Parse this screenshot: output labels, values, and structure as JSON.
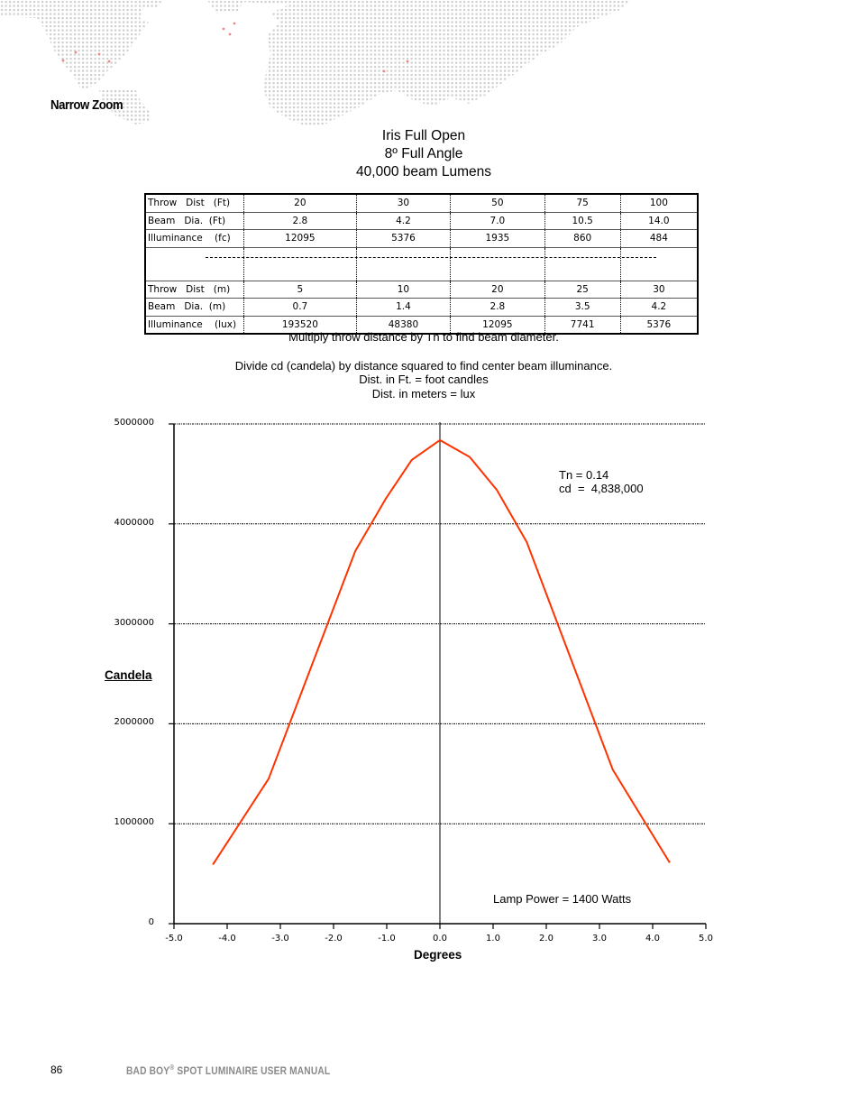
{
  "header": {
    "section_title": "Narrow Zoom"
  },
  "chart_heading": {
    "line1": "Iris Full Open",
    "line2": "8º Full Angle",
    "line3": "40,000 beam Lumens"
  },
  "photometric_table": {
    "imperial": [
      {
        "label": "Throw   Dist   (Ft)",
        "values": [
          "20",
          "30",
          "50",
          "75",
          "100"
        ]
      },
      {
        "label": "Beam   Dia.  (Ft)",
        "values": [
          "2.8",
          "4.2",
          "7.0",
          "10.5",
          "14.0"
        ]
      },
      {
        "label": "Illuminance    (fc)",
        "values": [
          "12095",
          "5376",
          "1935",
          "860",
          "484"
        ]
      }
    ],
    "metric": [
      {
        "label": "Throw   Dist   (m)",
        "values": [
          "5",
          "10",
          "20",
          "25",
          "30"
        ]
      },
      {
        "label": "Beam   Dia.  (m)",
        "values": [
          "0.7",
          "1.4",
          "2.8",
          "3.5",
          "4.2"
        ]
      },
      {
        "label": "Illuminance    (lux)",
        "values": [
          "193520",
          "48380",
          "12095",
          "7741",
          "5376"
        ]
      }
    ]
  },
  "notes": {
    "line1": "Multiply throw distance by Tn to find beam diameter.",
    "line2": "Divide cd (candela) by distance squared to find center beam illuminance.",
    "line3": "Dist. in Ft. = foot candles",
    "line4": "Dist. in meters = lux"
  },
  "chart_data": {
    "type": "line",
    "title": "",
    "xlabel": "Degrees",
    "ylabel": "Candela",
    "xlim": [
      -5.0,
      5.0
    ],
    "ylim": [
      0,
      5000000
    ],
    "x_ticks": [
      "-5.0",
      "-4.0",
      "-3.0",
      "-2.0",
      "-1.0",
      "0.0",
      "1.0",
      "2.0",
      "3.0",
      "4.0",
      "5.0"
    ],
    "y_ticks": [
      "0",
      "1000000",
      "2000000",
      "3000000",
      "4000000",
      "5000000"
    ],
    "grid": {
      "horizontal": true,
      "style": "dotted"
    },
    "line_color": "#ff3300",
    "series": [
      {
        "name": "Candela",
        "x": [
          -4.27,
          -3.22,
          -1.59,
          -1.02,
          -0.53,
          0.0,
          0.56,
          1.07,
          1.63,
          3.25,
          4.32
        ],
        "values": [
          590000,
          1450000,
          3730000,
          4250000,
          4640000,
          4838000,
          4670000,
          4340000,
          3820000,
          1540000,
          610000
        ]
      }
    ],
    "annotations": [
      {
        "text": "Tn = 0.14\ncd  =  4,838,000"
      },
      {
        "text": "Lamp Power = 1400 Watts"
      }
    ]
  },
  "footer": {
    "page_number": "86",
    "manual_title_part1": "BAD BOY",
    "manual_title_reg": "®",
    "manual_title_part2": " SPOT LUMINAIRE USER MANUAL"
  }
}
